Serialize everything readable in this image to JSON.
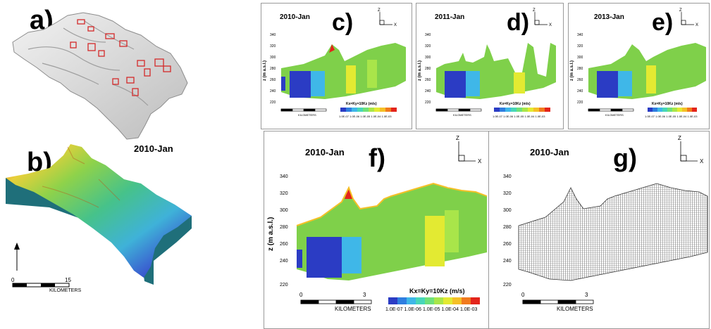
{
  "panels": {
    "a": {
      "label": "a)"
    },
    "b": {
      "label": "b)",
      "date": "2010-Jan",
      "scalebar": {
        "start": "0",
        "end": "15",
        "units": "KILOMETERS"
      }
    },
    "c": {
      "label": "c)",
      "date": "2010-Jan"
    },
    "d": {
      "label": "d)",
      "date": "2011-Jan"
    },
    "e": {
      "label": "e)",
      "date": "2013-Jan"
    },
    "f": {
      "label": "f)",
      "date": "2010-Jan"
    },
    "g": {
      "label": "g)",
      "date": "2010-Jan"
    }
  },
  "section_plot": {
    "y_label": "z (m a.s.l.)",
    "y_ticks": [
      "220",
      "240",
      "260",
      "280",
      "300",
      "320",
      "340"
    ],
    "scalebar": {
      "start": "0",
      "end": "3",
      "units": "KILOMETERS"
    },
    "legend": {
      "title": "Kx=Ky=10Kz (m/s)",
      "ticks": [
        "1.0E-07",
        "1.0E-06",
        "1.0E-05",
        "1.0E-04",
        "1.0E-03"
      ],
      "colors": [
        "#2b3cc4",
        "#2f7ee0",
        "#3fb7e8",
        "#48d6b8",
        "#6fe07a",
        "#a9e54a",
        "#e3ea32",
        "#f5c027",
        "#f17a1e",
        "#e3241b"
      ]
    },
    "axes": {
      "x": "X",
      "z": "Z"
    }
  },
  "colors": {
    "frame": "#9a9a9a",
    "boundary": "#d42a2a"
  }
}
